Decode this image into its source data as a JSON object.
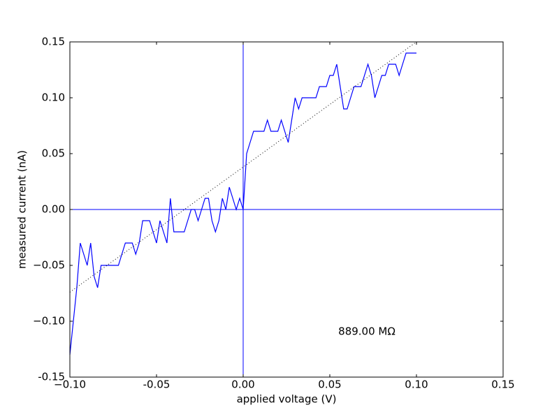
{
  "chart_data": {
    "type": "line",
    "xlabel": "applied voltage (V)",
    "ylabel": "measured current (nA)",
    "annotation": "889.00 MΩ",
    "x": [
      -0.1,
      -0.098,
      -0.096,
      -0.094,
      -0.092,
      -0.09,
      -0.088,
      -0.086,
      -0.084,
      -0.082,
      -0.08,
      -0.078,
      -0.076,
      -0.074,
      -0.072,
      -0.07,
      -0.068,
      -0.066,
      -0.064,
      -0.062,
      -0.06,
      -0.058,
      -0.056,
      -0.054,
      -0.052,
      -0.05,
      -0.048,
      -0.046,
      -0.044,
      -0.042,
      -0.04,
      -0.038,
      -0.036,
      -0.034,
      -0.032,
      -0.03,
      -0.028,
      -0.026,
      -0.024,
      -0.022,
      -0.02,
      -0.018,
      -0.016,
      -0.014,
      -0.012,
      -0.01,
      -0.008,
      -0.006,
      -0.004,
      -0.002,
      0,
      0.002,
      0.004,
      0.006,
      0.008,
      0.01,
      0.012,
      0.014,
      0.016,
      0.018,
      0.02,
      0.022,
      0.024,
      0.026,
      0.028,
      0.03,
      0.032,
      0.034,
      0.036,
      0.038,
      0.04,
      0.042,
      0.044,
      0.046,
      0.048,
      0.05,
      0.052,
      0.054,
      0.056,
      0.058,
      0.06,
      0.062,
      0.064,
      0.066,
      0.068,
      0.07,
      0.072,
      0.074,
      0.076,
      0.078,
      0.08,
      0.082,
      0.084,
      0.086,
      0.088,
      0.09,
      0.092,
      0.094,
      0.096,
      0.098,
      0.1
    ],
    "series": [
      {
        "color": "#0000ff",
        "style": "solid",
        "values": [
          -0.13,
          -0.1,
          -0.07,
          -0.03,
          -0.04,
          -0.05,
          -0.03,
          -0.06,
          -0.07,
          -0.05,
          -0.05,
          -0.05,
          -0.05,
          -0.05,
          -0.05,
          -0.04,
          -0.03,
          -0.03,
          -0.03,
          -0.04,
          -0.03,
          -0.01,
          -0.01,
          -0.01,
          -0.02,
          -0.03,
          -0.01,
          -0.02,
          -0.03,
          0.01,
          -0.02,
          -0.02,
          -0.02,
          -0.02,
          -0.01,
          0,
          0,
          -0.01,
          0,
          0.01,
          0.01,
          -0.01,
          -0.02,
          -0.01,
          0.01,
          0,
          0.02,
          0.01,
          0,
          0.01,
          0,
          0.05,
          0.06,
          0.07,
          0.07,
          0.07,
          0.07,
          0.08,
          0.07,
          0.07,
          0.07,
          0.08,
          0.07,
          0.06,
          0.08,
          0.1,
          0.09,
          0.1,
          0.1,
          0.1,
          0.1,
          0.1,
          0.11,
          0.11,
          0.11,
          0.12,
          0.12,
          0.13,
          0.11,
          0.09,
          0.09,
          0.1,
          0.11,
          0.11,
          0.11,
          0.12,
          0.13,
          0.12,
          0.1,
          0.11,
          0.12,
          0.12,
          0.13,
          0.13,
          0.13,
          0.12,
          0.13,
          0.14,
          0.14,
          0.14,
          0.14
        ]
      },
      {
        "color": "#000000",
        "style": "dotted",
        "x": [
          -0.1,
          0.1
        ],
        "values": [
          -0.074,
          0.15
        ]
      }
    ],
    "reference_lines": {
      "x": 0,
      "y": 0,
      "color": "#0000ff"
    },
    "xlim": [
      -0.1,
      0.15
    ],
    "ylim": [
      -0.15,
      0.15
    ],
    "xticks": [
      {
        "value": -0.1,
        "label": "−0.10"
      },
      -0.05,
      {
        "value": 0,
        "label": "0.00"
      },
      0.05,
      {
        "value": 0.1,
        "label": "0.10"
      },
      0.15
    ],
    "yticks": [
      -0.15,
      {
        "value": -0.1,
        "label": "−0.10"
      },
      {
        "value": -0.05,
        "label": "−0.05"
      },
      {
        "value": 0,
        "label": "0.00"
      },
      0.05,
      {
        "value": 0.1,
        "label": "0.10"
      },
      0.15
    ],
    "grid": false
  }
}
